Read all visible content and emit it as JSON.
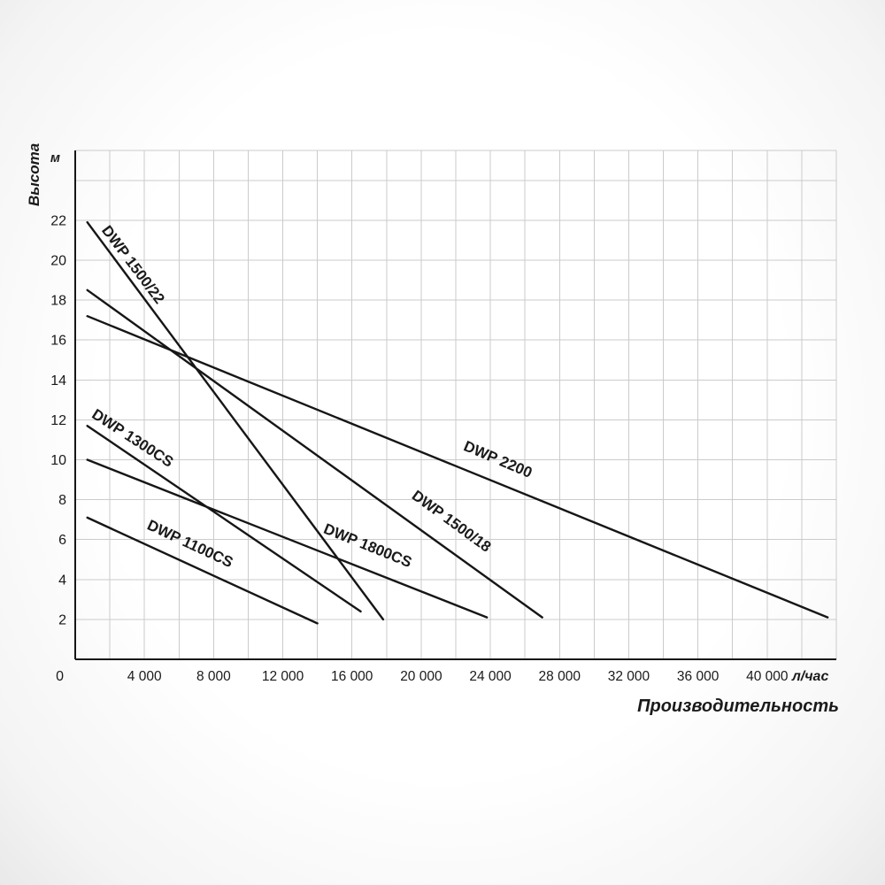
{
  "chart_data": {
    "type": "line",
    "title": "",
    "xlabel": "Производительность",
    "x_unit_label": "л/час",
    "ylabel": "Высота",
    "y_unit_label": "м",
    "origin_label": "0",
    "xlim": [
      0,
      44000
    ],
    "ylim": [
      0,
      25.5
    ],
    "x_gridline_step": 2000,
    "y_gridline_step": 2,
    "grid": true,
    "legend_position": "inline-curve-labels",
    "colors": {
      "grid": "#cbcbcb",
      "axis": "#161616",
      "curve": "#161616",
      "text": "#1a1a1a",
      "background": "#ffffff"
    },
    "x_tick_labels": [
      {
        "value": 4000,
        "label": "4 000"
      },
      {
        "value": 8000,
        "label": "8 000"
      },
      {
        "value": 12000,
        "label": "12 000"
      },
      {
        "value": 16000,
        "label": "16 000"
      },
      {
        "value": 20000,
        "label": "20 000"
      },
      {
        "value": 24000,
        "label": "24 000"
      },
      {
        "value": 28000,
        "label": "28 000"
      },
      {
        "value": 32000,
        "label": "32 000"
      },
      {
        "value": 36000,
        "label": "36 000"
      },
      {
        "value": 40000,
        "label": "40 000"
      }
    ],
    "y_tick_values": [
      2,
      4,
      6,
      8,
      10,
      12,
      14,
      16,
      18,
      20,
      22
    ],
    "series": [
      {
        "name": "DWP 1500/22",
        "points": [
          [
            700,
            21.9
          ],
          [
            17800,
            2.0
          ]
        ],
        "label_anchor": [
          1500,
          21.5
        ],
        "label_angle_deg": 53
      },
      {
        "name": "DWP 1500/18",
        "points": [
          [
            700,
            18.5
          ],
          [
            27000,
            2.1
          ]
        ],
        "label_anchor": [
          19400,
          8.1
        ],
        "label_angle_deg": 36
      },
      {
        "name": "DWP 2200",
        "points": [
          [
            700,
            17.2
          ],
          [
            43500,
            2.1
          ]
        ],
        "label_anchor": [
          22400,
          10.5
        ],
        "label_angle_deg": 23
      },
      {
        "name": "DWP 1300CS",
        "points": [
          [
            700,
            11.7
          ],
          [
            16500,
            2.4
          ]
        ],
        "label_anchor": [
          900,
          12.15
        ],
        "label_angle_deg": 33
      },
      {
        "name": "DWP 1800CS",
        "points": [
          [
            700,
            10.0
          ],
          [
            23800,
            2.1
          ]
        ],
        "label_anchor": [
          14300,
          6.35
        ],
        "label_angle_deg": 22
      },
      {
        "name": "DWP 1100CS",
        "points": [
          [
            700,
            7.1
          ],
          [
            14000,
            1.8
          ]
        ],
        "label_anchor": [
          4100,
          6.55
        ],
        "label_angle_deg": 25
      }
    ]
  }
}
